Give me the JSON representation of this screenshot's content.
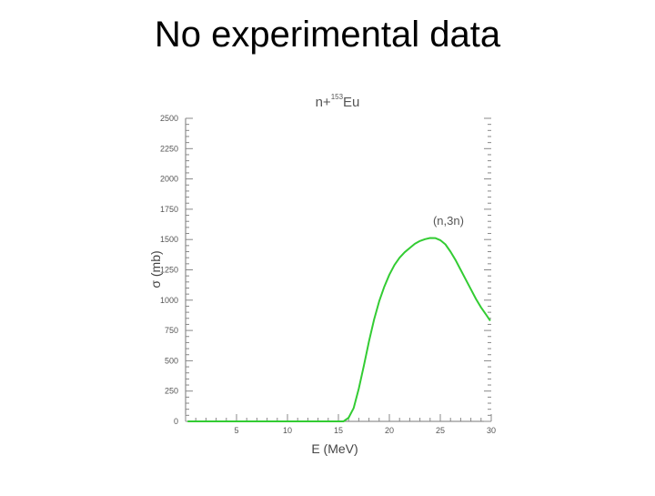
{
  "slide": {
    "title": "No experimental data"
  },
  "chart_data": {
    "type": "line",
    "title_prefix": "n+",
    "title_superscript": "153",
    "title_element": "Eu",
    "xlabel": "E (MeV)",
    "ylabel": "σ (mb)",
    "xlim": [
      0,
      30
    ],
    "ylim": [
      0,
      2500
    ],
    "x_ticks": [
      5,
      10,
      15,
      20,
      25,
      30
    ],
    "y_ticks": [
      0,
      250,
      500,
      750,
      1000,
      1250,
      1500,
      1750,
      2000,
      2250,
      2500
    ],
    "grid": false,
    "annotations": [
      {
        "text": "(n,3n)",
        "x": 25.8,
        "y": 1620
      }
    ],
    "series": [
      {
        "color": "#33cc33",
        "x": [
          0.2,
          15.5,
          16.0,
          16.5,
          17.0,
          17.5,
          18.0,
          18.5,
          19.0,
          19.5,
          20.0,
          20.5,
          21.0,
          21.5,
          22.0,
          22.5,
          23.0,
          23.5,
          24.0,
          24.5,
          25.0,
          25.5,
          26.0,
          26.5,
          27.0,
          27.5,
          28.0,
          28.5,
          29.0,
          29.5,
          29.9
        ],
        "y": [
          0,
          0,
          30,
          110,
          270,
          460,
          660,
          840,
          990,
          1110,
          1210,
          1290,
          1350,
          1395,
          1430,
          1465,
          1488,
          1503,
          1513,
          1512,
          1495,
          1460,
          1400,
          1330,
          1250,
          1170,
          1090,
          1010,
          940,
          880,
          830
        ]
      }
    ]
  }
}
